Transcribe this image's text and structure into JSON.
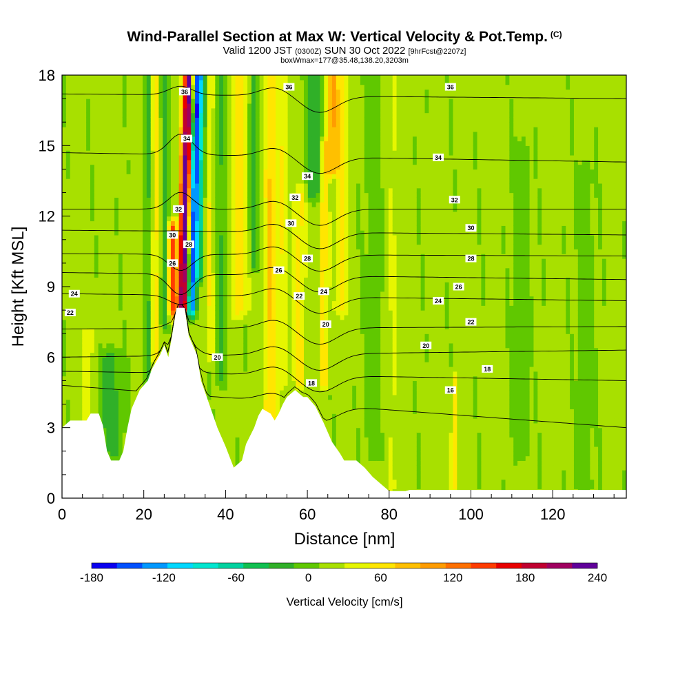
{
  "header": {
    "title": "Wind-Parallel Section at Max W: Vertical Velocity & Pot.Temp.",
    "copyright": "(C)",
    "valid_prefix": "Valid 1200 JST",
    "valid_utc": "(0300Z)",
    "valid_date": "SUN 30 Oct 2022",
    "forecast": "[9hrFcst@2207z]",
    "box_info": "boxWmax=177@35.48,138.20,3203m"
  },
  "chart_data": {
    "type": "heatmap",
    "xlabel": "Distance [nm]",
    "ylabel": "Height [Kft MSL]",
    "xlim": [
      0,
      138
    ],
    "ylim": [
      0,
      18
    ],
    "x_ticks": [
      0,
      20,
      40,
      60,
      80,
      100,
      120
    ],
    "y_ticks": [
      0,
      3,
      6,
      9,
      12,
      15,
      18
    ],
    "x_tick_labels": [
      "0",
      "20",
      "40",
      "60",
      "80",
      "100",
      "120"
    ],
    "y_tick_labels": [
      "0",
      "3",
      "6",
      "9",
      "12",
      "15",
      "18"
    ],
    "terrain": [
      {
        "x": 0,
        "h": 3.0
      },
      {
        "x": 2,
        "h": 3.3
      },
      {
        "x": 6,
        "h": 3.3
      },
      {
        "x": 7,
        "h": 3.6
      },
      {
        "x": 9,
        "h": 3.6
      },
      {
        "x": 10,
        "h": 3.1
      },
      {
        "x": 11,
        "h": 2.0
      },
      {
        "x": 12,
        "h": 1.6
      },
      {
        "x": 14,
        "h": 1.6
      },
      {
        "x": 15,
        "h": 2.0
      },
      {
        "x": 16,
        "h": 3.0
      },
      {
        "x": 17,
        "h": 3.8
      },
      {
        "x": 19,
        "h": 4.6
      },
      {
        "x": 21,
        "h": 5.0
      },
      {
        "x": 22,
        "h": 5.5
      },
      {
        "x": 24,
        "h": 6.1
      },
      {
        "x": 25,
        "h": 6.5
      },
      {
        "x": 26,
        "h": 6.0
      },
      {
        "x": 27,
        "h": 7.0
      },
      {
        "x": 28,
        "h": 8.1
      },
      {
        "x": 30,
        "h": 8.1
      },
      {
        "x": 31,
        "h": 6.9
      },
      {
        "x": 33,
        "h": 6.1
      },
      {
        "x": 34,
        "h": 5.0
      },
      {
        "x": 36,
        "h": 4.0
      },
      {
        "x": 37,
        "h": 3.5
      },
      {
        "x": 38,
        "h": 3.0
      },
      {
        "x": 40,
        "h": 2.2
      },
      {
        "x": 42,
        "h": 1.3
      },
      {
        "x": 44,
        "h": 1.6
      },
      {
        "x": 45,
        "h": 2.3
      },
      {
        "x": 47,
        "h": 3.0
      },
      {
        "x": 48,
        "h": 3.5
      },
      {
        "x": 49,
        "h": 3.8
      },
      {
        "x": 51,
        "h": 3.6
      },
      {
        "x": 52,
        "h": 3.3
      },
      {
        "x": 53,
        "h": 3.6
      },
      {
        "x": 54,
        "h": 4.0
      },
      {
        "x": 55,
        "h": 4.3
      },
      {
        "x": 57,
        "h": 4.6
      },
      {
        "x": 59,
        "h": 4.3
      },
      {
        "x": 60,
        "h": 4.3
      },
      {
        "x": 62,
        "h": 3.9
      },
      {
        "x": 64,
        "h": 3.2
      },
      {
        "x": 66,
        "h": 2.4
      },
      {
        "x": 68,
        "h": 1.9
      },
      {
        "x": 69,
        "h": 1.6
      },
      {
        "x": 72,
        "h": 1.6
      },
      {
        "x": 74,
        "h": 1.3
      },
      {
        "x": 76,
        "h": 0.9
      },
      {
        "x": 78,
        "h": 0.6
      },
      {
        "x": 80,
        "h": 0.3
      },
      {
        "x": 84,
        "h": 0.3
      },
      {
        "x": 85,
        "h": 0.35
      },
      {
        "x": 138,
        "h": 0.35
      }
    ],
    "isentropes": [
      {
        "theta": 16,
        "label": "16",
        "y_left": 4.8,
        "y_right": 3.0
      },
      {
        "theta": 18,
        "label": "18",
        "y_left": 5.4,
        "y_right": 5.0
      },
      {
        "theta": 20,
        "label": "20",
        "y_left": 6.0,
        "y_right": 6.3
      },
      {
        "theta": 22,
        "label": "22",
        "y_left": 7.2,
        "y_right": 7.3
      },
      {
        "theta": 24,
        "label": "24",
        "y_left": 8.7,
        "y_right": 8.4
      },
      {
        "theta": 26,
        "label": "26",
        "y_left": 9.6,
        "y_right": 9.3
      },
      {
        "theta": 28,
        "label": "28",
        "y_left": 10.4,
        "y_right": 10.3
      },
      {
        "theta": 30,
        "label": "30",
        "y_left": 11.4,
        "y_right": 11.2
      },
      {
        "theta": 32,
        "label": "32",
        "y_left": 12.3,
        "y_right": 12.3
      },
      {
        "theta": 34,
        "label": "34",
        "y_left": 14.7,
        "y_right": 14.3
      },
      {
        "theta": 36,
        "label": "36",
        "y_left": 17.2,
        "y_right": 17.0
      }
    ],
    "contour_labels": [
      {
        "text": "36",
        "x": 30.0,
        "y": 17.3
      },
      {
        "text": "34",
        "x": 30.5,
        "y": 15.3
      },
      {
        "text": "32",
        "x": 28.5,
        "y": 12.3
      },
      {
        "text": "30",
        "x": 27.0,
        "y": 11.2
      },
      {
        "text": "28",
        "x": 31.0,
        "y": 10.8
      },
      {
        "text": "26",
        "x": 27.0,
        "y": 10.0
      },
      {
        "text": "24",
        "x": 3.0,
        "y": 8.7
      },
      {
        "text": "22",
        "x": 2.0,
        "y": 7.9
      },
      {
        "text": "20",
        "x": 38.0,
        "y": 6.0
      },
      {
        "text": "36",
        "x": 55.5,
        "y": 17.5
      },
      {
        "text": "34",
        "x": 60.0,
        "y": 13.7
      },
      {
        "text": "32",
        "x": 57.0,
        "y": 12.8
      },
      {
        "text": "30",
        "x": 56.0,
        "y": 11.7
      },
      {
        "text": "28",
        "x": 60.0,
        "y": 10.2
      },
      {
        "text": "26",
        "x": 53.0,
        "y": 9.7
      },
      {
        "text": "24",
        "x": 64.0,
        "y": 8.8
      },
      {
        "text": "22",
        "x": 58.0,
        "y": 8.6
      },
      {
        "text": "20",
        "x": 64.5,
        "y": 7.4
      },
      {
        "text": "18",
        "x": 61.0,
        "y": 4.9
      },
      {
        "text": "36",
        "x": 95.0,
        "y": 17.5
      },
      {
        "text": "34",
        "x": 92.0,
        "y": 14.5
      },
      {
        "text": "32",
        "x": 96.0,
        "y": 12.7
      },
      {
        "text": "30",
        "x": 100.0,
        "y": 11.5
      },
      {
        "text": "28",
        "x": 100.0,
        "y": 10.2
      },
      {
        "text": "26",
        "x": 97.0,
        "y": 9.0
      },
      {
        "text": "24",
        "x": 92.0,
        "y": 8.4
      },
      {
        "text": "22",
        "x": 100.0,
        "y": 7.5
      },
      {
        "text": "20",
        "x": 89.0,
        "y": 6.5
      },
      {
        "text": "18",
        "x": 104.0,
        "y": 5.5
      },
      {
        "text": "16",
        "x": 95.0,
        "y": 4.6
      }
    ],
    "velocity_field_cm_s": {
      "background": 15,
      "features": [
        {
          "x": 29.5,
          "y0": 8.0,
          "y1": 18,
          "width": 1.3,
          "w": 230,
          "lean": 0.15
        },
        {
          "x": 31.5,
          "y0": 8.0,
          "y1": 18,
          "width": 1.2,
          "w": -170,
          "lean": 0.15
        },
        {
          "x": 33.5,
          "y0": 9.5,
          "y1": 18,
          "width": 1.2,
          "w": -60,
          "lean": 0.1
        },
        {
          "x": 27.0,
          "y0": 8.0,
          "y1": 11.5,
          "width": 1.0,
          "w": 120,
          "lean": 0
        },
        {
          "x": 25.0,
          "y0": 7.5,
          "y1": 18,
          "width": 1.0,
          "w": -45,
          "lean": 0
        },
        {
          "x": 23.0,
          "y0": 6.0,
          "y1": 18,
          "width": 1.2,
          "w": 45,
          "lean": 0
        },
        {
          "x": 21.0,
          "y0": 5.0,
          "y1": 18,
          "width": 1.0,
          "w": -35,
          "lean": 0
        },
        {
          "x": 36.0,
          "y0": 6.0,
          "y1": 18,
          "width": 1.0,
          "w": 35,
          "lean": 0
        },
        {
          "x": 39.0,
          "y0": 5.0,
          "y1": 18,
          "width": 1.3,
          "w": -30,
          "lean": 0
        },
        {
          "x": 43.5,
          "y0": 8.0,
          "y1": 18,
          "width": 2.0,
          "w": 50,
          "lean": 0
        },
        {
          "x": 47.0,
          "y0": 10.0,
          "y1": 18,
          "width": 1.5,
          "w": -35,
          "lean": 0
        },
        {
          "x": 51.0,
          "y0": 3.5,
          "y1": 18,
          "width": 1.5,
          "w": 60,
          "lean": 0
        },
        {
          "x": 54.0,
          "y0": 5.0,
          "y1": 18,
          "width": 1.2,
          "w": 35,
          "lean": 0
        },
        {
          "x": 58.0,
          "y0": 5.0,
          "y1": 13,
          "width": 1.5,
          "w": 45,
          "lean": 0
        },
        {
          "x": 62.0,
          "y0": 13.0,
          "y1": 18,
          "width": 2.0,
          "w": -50,
          "lean": 0
        },
        {
          "x": 64.0,
          "y0": 5.0,
          "y1": 15,
          "width": 1.2,
          "w": 50,
          "lean": 0
        },
        {
          "x": 66.0,
          "y0": 14.0,
          "y1": 18,
          "width": 1.5,
          "w": 80,
          "lean": 0
        },
        {
          "x": 68.5,
          "y0": 8.0,
          "y1": 18,
          "width": 1.5,
          "w": 40,
          "lean": 0
        },
        {
          "x": 76.0,
          "y0": 2.0,
          "y1": 18,
          "width": 2.0,
          "w": -20,
          "lean": 0
        },
        {
          "x": 81.0,
          "y0": 0.5,
          "y1": 18,
          "width": 1.2,
          "w": 20,
          "lean": 0
        },
        {
          "x": 96.0,
          "y0": 0.5,
          "y1": 5.0,
          "width": 0.8,
          "w": 50,
          "lean": 0
        },
        {
          "x": 112.0,
          "y0": 2.0,
          "y1": 15,
          "width": 2.0,
          "w": -20,
          "lean": 0
        },
        {
          "x": 128.0,
          "y0": 0.5,
          "y1": 14,
          "width": 2.0,
          "w": -20,
          "lean": 0
        },
        {
          "x": 12.0,
          "y0": 2.0,
          "y1": 6.0,
          "width": 3.0,
          "w": -35,
          "lean": 0
        },
        {
          "x": 6.0,
          "y0": 3.5,
          "y1": 7.0,
          "width": 1.5,
          "w": 30,
          "lean": 0
        }
      ]
    },
    "colorbar": {
      "label": "Vertical Velocity [cm/s]",
      "min": -180,
      "max": 240,
      "tick_values": [
        -180,
        -120,
        -60,
        0,
        60,
        120,
        180,
        240
      ],
      "tick_labels": [
        "-180",
        "-120",
        "-60",
        "0",
        "60",
        "120",
        "180",
        "240"
      ],
      "colors": [
        "#0a00f0",
        "#0050ff",
        "#0098ff",
        "#00d8ff",
        "#00e6d0",
        "#00d2a0",
        "#10c050",
        "#30b028",
        "#60c800",
        "#a8e000",
        "#e6f600",
        "#ffe600",
        "#ffc000",
        "#ff9c00",
        "#ff7000",
        "#ff3c00",
        "#e80000",
        "#c00030",
        "#a00060",
        "#60009a"
      ]
    }
  }
}
